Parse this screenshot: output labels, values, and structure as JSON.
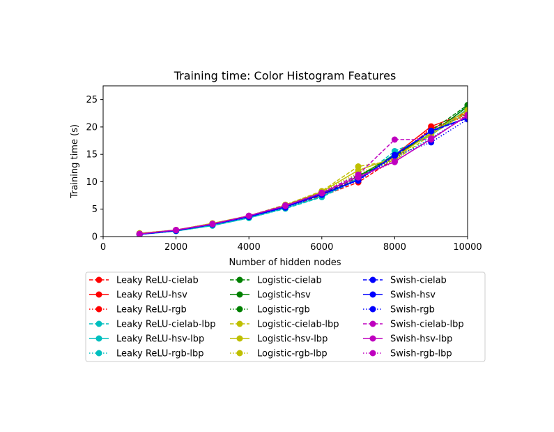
{
  "chart_data": {
    "type": "line",
    "title": "Training time: Color Histogram Features",
    "xlabel": "Number of hidden nodes",
    "ylabel": "Training time (s)",
    "xlim": [
      0,
      10000
    ],
    "ylim": [
      0,
      27.5
    ],
    "xticks": [
      0,
      2000,
      4000,
      6000,
      8000,
      10000
    ],
    "yticks": [
      0,
      5,
      10,
      15,
      20,
      25
    ],
    "grid": false,
    "legend_position": "below plot, 3 columns",
    "x": [
      1000,
      2000,
      3000,
      4000,
      5000,
      6000,
      7000,
      8000,
      9000,
      10000
    ],
    "series": [
      {
        "name": "Leaky ReLU-cielab",
        "color": "#ff0000",
        "linestyle": "dashed",
        "marker": "circle",
        "values": [
          0.5,
          1.1,
          2.3,
          3.7,
          5.5,
          7.4,
          9.9,
          14.2,
          19.7,
          22.3
        ]
      },
      {
        "name": "Leaky ReLU-hsv",
        "color": "#ff0000",
        "linestyle": "solid",
        "marker": "circle",
        "values": [
          0.5,
          1.2,
          2.4,
          3.7,
          5.6,
          7.6,
          10.5,
          14.9,
          20.1,
          22.6
        ]
      },
      {
        "name": "Leaky ReLU-rgb",
        "color": "#ff0000",
        "linestyle": "dotted",
        "marker": "circle",
        "values": [
          0.4,
          1.1,
          2.3,
          3.6,
          5.4,
          7.6,
          10.7,
          14.4,
          19.8,
          22.0
        ]
      },
      {
        "name": "Leaky ReLU-cielab-lbp",
        "color": "#00bfbf",
        "linestyle": "dashed",
        "marker": "circle",
        "values": [
          0.4,
          1.0,
          2.0,
          3.4,
          5.1,
          7.2,
          10.4,
          15.6,
          18.4,
          23.9
        ]
      },
      {
        "name": "Leaky ReLU-hsv-lbp",
        "color": "#00bfbf",
        "linestyle": "solid",
        "marker": "circle",
        "values": [
          0.4,
          1.0,
          2.0,
          3.4,
          5.2,
          7.3,
          10.6,
          15.1,
          18.5,
          23.3
        ]
      },
      {
        "name": "Leaky ReLU-rgb-lbp",
        "color": "#00bfbf",
        "linestyle": "dotted",
        "marker": "circle",
        "values": [
          0.4,
          1.0,
          2.1,
          3.5,
          5.2,
          7.3,
          10.5,
          14.2,
          18.0,
          22.1
        ]
      },
      {
        "name": "Logistic-cielab",
        "color": "#008000",
        "linestyle": "dashed",
        "marker": "circle",
        "values": [
          0.5,
          1.1,
          2.3,
          3.7,
          5.5,
          7.8,
          10.8,
          14.6,
          19.3,
          24.0
        ]
      },
      {
        "name": "Logistic-hsv",
        "color": "#008000",
        "linestyle": "solid",
        "marker": "circle",
        "values": [
          0.5,
          1.1,
          2.3,
          3.7,
          5.5,
          7.8,
          11.0,
          14.9,
          18.8,
          23.7
        ]
      },
      {
        "name": "Logistic-rgb",
        "color": "#008000",
        "linestyle": "dotted",
        "marker": "circle",
        "values": [
          0.5,
          1.1,
          2.3,
          3.7,
          5.5,
          8.1,
          11.2,
          14.2,
          19.1,
          22.5
        ]
      },
      {
        "name": "Logistic-cielab-lbp",
        "color": "#bfbf00",
        "linestyle": "dashed",
        "marker": "circle",
        "values": [
          0.6,
          1.2,
          2.4,
          3.8,
          5.8,
          8.3,
          12.8,
          13.9,
          18.6,
          22.7
        ]
      },
      {
        "name": "Logistic-hsv-lbp",
        "color": "#bfbf00",
        "linestyle": "solid",
        "marker": "circle",
        "values": [
          0.6,
          1.2,
          2.4,
          3.8,
          5.7,
          8.2,
          12.1,
          14.4,
          18.9,
          23.1
        ]
      },
      {
        "name": "Logistic-rgb-lbp",
        "color": "#bfbf00",
        "linestyle": "dotted",
        "marker": "circle",
        "values": [
          0.6,
          1.2,
          2.4,
          3.8,
          5.8,
          8.2,
          11.6,
          14.0,
          19.2,
          22.9
        ]
      },
      {
        "name": "Swish-cielab",
        "color": "#0000ff",
        "linestyle": "dashed",
        "marker": "circle",
        "values": [
          0.4,
          1.1,
          2.2,
          3.6,
          5.4,
          7.8,
          10.4,
          14.8,
          19.2,
          21.6
        ]
      },
      {
        "name": "Swish-hsv",
        "color": "#0000ff",
        "linestyle": "solid",
        "marker": "circle",
        "values": [
          0.4,
          1.1,
          2.2,
          3.6,
          5.4,
          7.7,
          10.3,
          14.9,
          19.3,
          21.7
        ]
      },
      {
        "name": "Swish-rgb",
        "color": "#0000ff",
        "linestyle": "dotted",
        "marker": "circle",
        "values": [
          0.4,
          1.1,
          2.2,
          3.6,
          5.3,
          7.6,
          10.2,
          14.7,
          17.2,
          21.4
        ]
      },
      {
        "name": "Swish-cielab-lbp",
        "color": "#bf00bf",
        "linestyle": "dashed",
        "marker": "circle",
        "values": [
          0.5,
          1.2,
          2.3,
          3.8,
          5.7,
          8.0,
          11.3,
          17.7,
          17.7,
          22.2
        ]
      },
      {
        "name": "Swish-hsv-lbp",
        "color": "#bf00bf",
        "linestyle": "solid",
        "marker": "circle",
        "values": [
          0.5,
          1.2,
          2.3,
          3.8,
          5.6,
          8.0,
          10.9,
          13.7,
          17.8,
          22.1
        ]
      },
      {
        "name": "Swish-rgb-lbp",
        "color": "#bf00bf",
        "linestyle": "dotted",
        "marker": "circle",
        "values": [
          0.5,
          1.2,
          2.3,
          3.8,
          5.6,
          7.9,
          10.8,
          13.6,
          17.9,
          22.0
        ]
      }
    ]
  }
}
